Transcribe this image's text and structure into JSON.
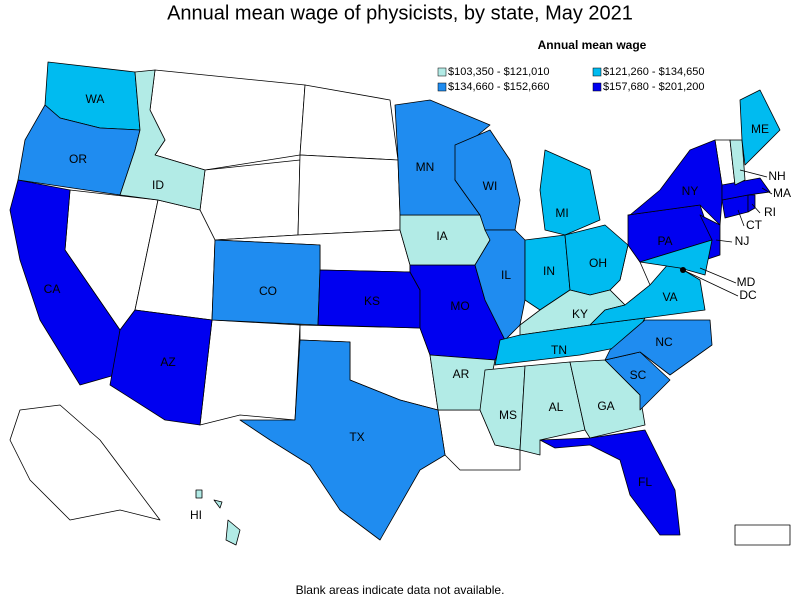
{
  "title": "Annual mean wage of physicists, by state, May 2021",
  "legend": {
    "title": "Annual mean wage",
    "items": [
      {
        "label": "$103,350 - $121,010",
        "color": "#b2ebe6"
      },
      {
        "label": "$121,260 - $134,650",
        "color": "#00bbf0"
      },
      {
        "label": "$134,660 - $152,660",
        "color": "#1f8cf0"
      },
      {
        "label": "$157,680 - $201,200",
        "color": "#0000f0"
      }
    ]
  },
  "states": [
    {
      "label": "WA",
      "class": 1
    },
    {
      "label": "OR",
      "class": 2
    },
    {
      "label": "CA",
      "class": 3
    },
    {
      "label": "ID",
      "class": 0
    },
    {
      "label": "AZ",
      "class": 3
    },
    {
      "label": "CO",
      "class": 2
    },
    {
      "label": "KS",
      "class": 3
    },
    {
      "label": "MO",
      "class": 3
    },
    {
      "label": "IA",
      "class": 0
    },
    {
      "label": "MN",
      "class": 2
    },
    {
      "label": "WI",
      "class": 2
    },
    {
      "label": "IL",
      "class": 2
    },
    {
      "label": "IN",
      "class": 1
    },
    {
      "label": "MI",
      "class": 1
    },
    {
      "label": "OH",
      "class": 1
    },
    {
      "label": "KY",
      "class": 0
    },
    {
      "label": "TN",
      "class": 1
    },
    {
      "label": "AR",
      "class": 0
    },
    {
      "label": "MS",
      "class": 0
    },
    {
      "label": "AL",
      "class": 0
    },
    {
      "label": "GA",
      "class": 0
    },
    {
      "label": "FL",
      "class": 3
    },
    {
      "label": "SC",
      "class": 2
    },
    {
      "label": "NC",
      "class": 2
    },
    {
      "label": "VA",
      "class": 1
    },
    {
      "label": "TX",
      "class": 2
    },
    {
      "label": "PA",
      "class": 3
    },
    {
      "label": "NY",
      "class": 3
    },
    {
      "label": "NJ",
      "class": 3
    },
    {
      "label": "MD",
      "class": 1
    },
    {
      "label": "DC",
      "class": 1
    },
    {
      "label": "CT",
      "class": 3
    },
    {
      "label": "RI",
      "class": 3
    },
    {
      "label": "MA",
      "class": 3
    },
    {
      "label": "NH",
      "class": 0
    },
    {
      "label": "ME",
      "class": 1
    },
    {
      "label": "HI",
      "class": 0
    }
  ],
  "footnote": "Blank areas indicate data not available."
}
